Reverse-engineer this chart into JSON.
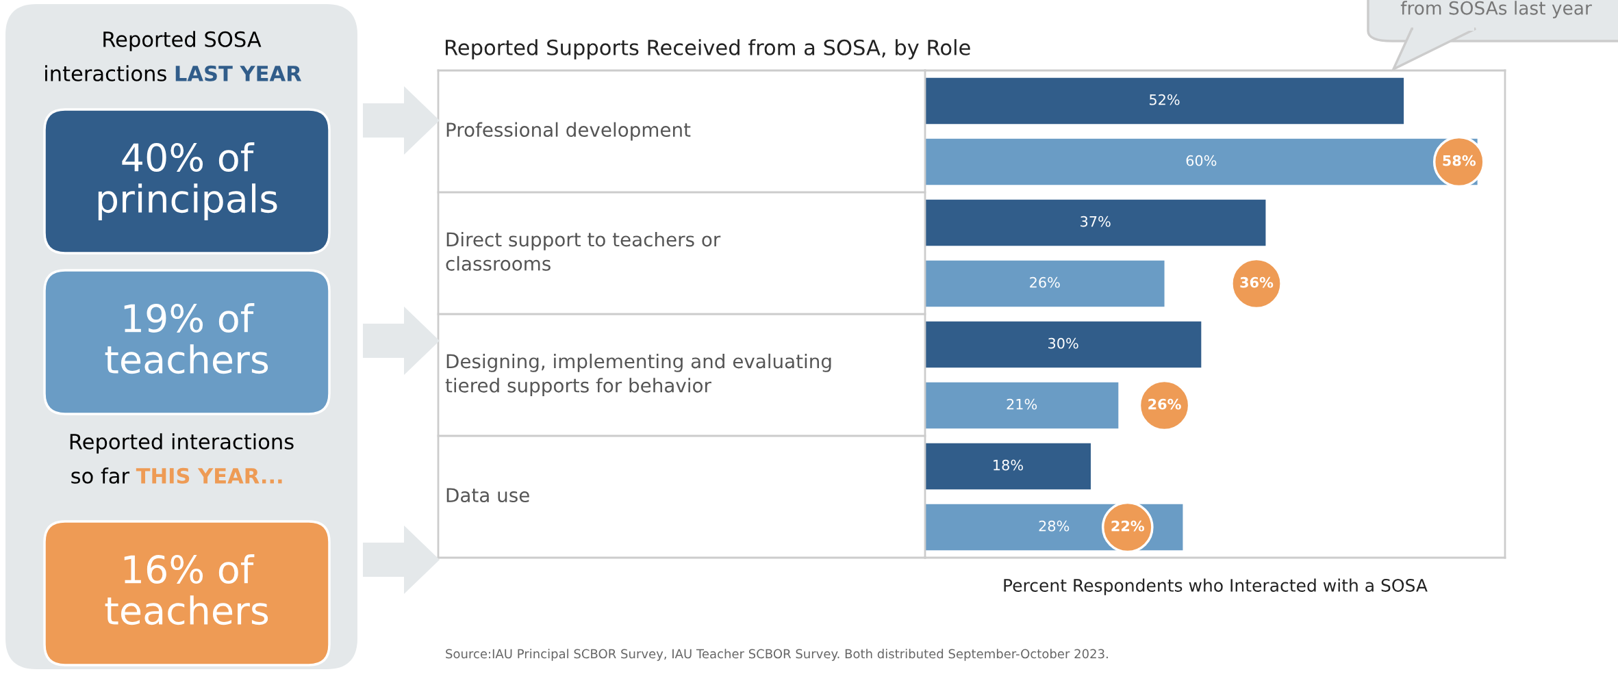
{
  "chart_data": [
    {
      "type": "other",
      "categories": [
        "40% of principals",
        "19% of teachers",
        "16% of teachers"
      ],
      "colors": [
        "#315d8a",
        "#6a9cc5",
        "#ee9b55"
      ],
      "annotations": [
        "Reported SOSA",
        "interactions",
        "LAST YEAR",
        "Reported interactions",
        "so far",
        "THIS YEAR..."
      ]
    },
    {
      "type": "bar",
      "orientation": "horizontal",
      "title": "Reported Supports Received from a SOSA, by Role",
      "xlabel": "Percent Respondents who Interacted with a SOSA",
      "categories": [
        "Professional development",
        "Direct support to teachers or classrooms",
        "Designing, implementing and evaluating tiered supports for behavior",
        "Data use"
      ],
      "series": [
        {
          "color": "#315d8a",
          "values": [
            52,
            37,
            30,
            18
          ],
          "value_labels": [
            "52%",
            "37%",
            "30%",
            "18%"
          ]
        },
        {
          "color": "#6a9cc5",
          "values": [
            60,
            26,
            21,
            28
          ],
          "value_labels": [
            "60%",
            "26%",
            "21%",
            "28%"
          ]
        },
        {
          "type": "scatter",
          "color": "#ee9b55",
          "marker": "circle",
          "values": [
            58,
            36,
            26,
            22
          ],
          "value_labels": [
            "58%",
            "36%",
            "26%",
            "22%"
          ]
        }
      ],
      "tick_labels": "y",
      "annotations": [
        "from SOSAs last year",
        "Source:IAU Principal SCBOR Survey, IAU Teacher SCBOR Survey. Both distributed September-October 2023."
      ]
    }
  ]
}
